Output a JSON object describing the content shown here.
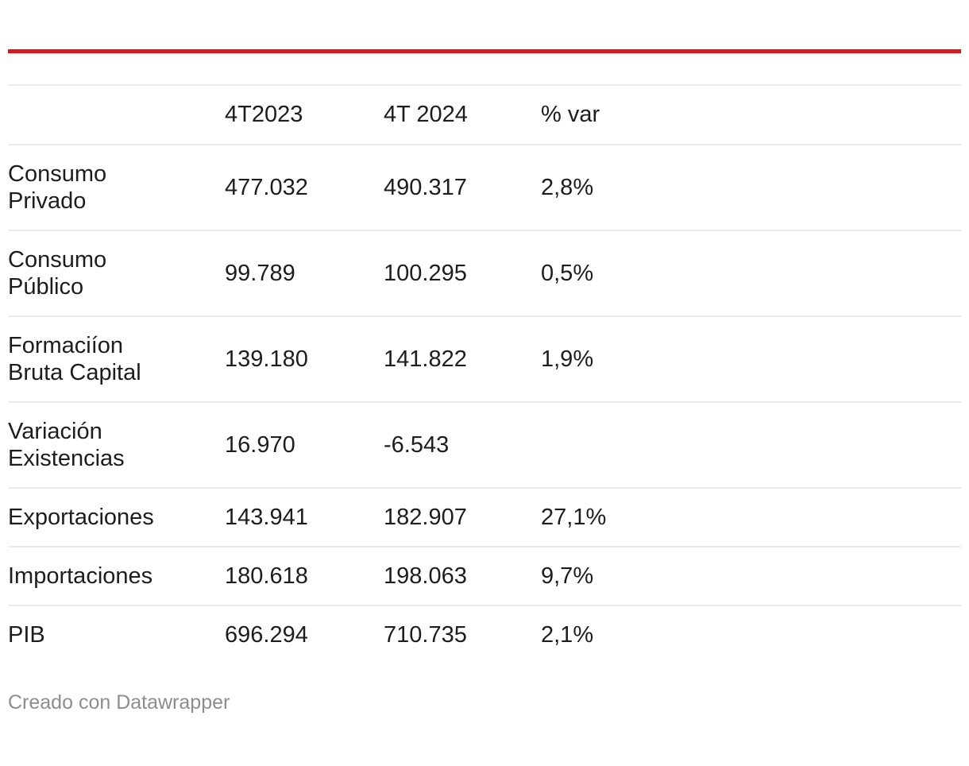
{
  "colors": {
    "accent": "#c52023",
    "rule": "#ebebeb",
    "text": "#1d1d1d",
    "muted": "#8d8d8d"
  },
  "chart_data": {
    "type": "table",
    "columns": [
      "",
      "4T2023",
      "4T 2024",
      "% var"
    ],
    "rows": [
      [
        "Consumo Privado",
        "477.032",
        "490.317",
        "2,8%"
      ],
      [
        "Consumo Público",
        "99.789",
        "100.295",
        "0,5%"
      ],
      [
        "Formaciíon Bruta Capital",
        "139.180",
        "141.822",
        "1,9%"
      ],
      [
        "Variación Existencias",
        "16.970",
        "-6.543",
        ""
      ],
      [
        "Exportaciones",
        "143.941",
        "182.907",
        "27,1%"
      ],
      [
        "Importaciones",
        "180.618",
        "198.063",
        "9,7%"
      ],
      [
        "PIB",
        "696.294",
        "710.735",
        "2,1%"
      ]
    ],
    "title": "",
    "legend_position": "none",
    "grid": "horizontal-rules"
  },
  "display": {
    "row_labels": [
      "Consumo\nPrivado",
      "Consumo\nPúblico",
      "Formaciíon\nBruta Capital",
      "Variación\nExistencias",
      "Exportaciones",
      "Importaciones",
      "PIB"
    ]
  },
  "footer": {
    "attribution": "Creado con Datawrapper"
  }
}
